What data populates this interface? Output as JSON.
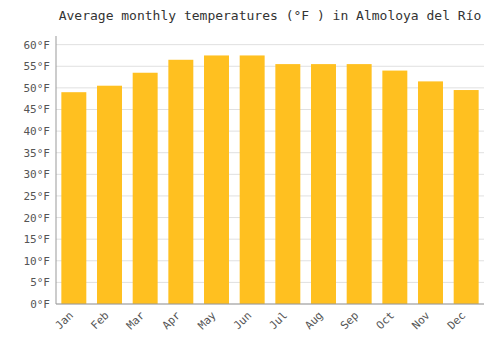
{
  "chart_data": {
    "type": "bar",
    "title": "Average monthly temperatures (°F ) in Almoloya del Río",
    "categories": [
      "Jan",
      "Feb",
      "Mar",
      "Apr",
      "May",
      "Jun",
      "Jul",
      "Aug",
      "Sep",
      "Oct",
      "Nov",
      "Dec"
    ],
    "values": [
      49,
      50.5,
      53.5,
      56.5,
      57.5,
      57.5,
      55.5,
      55.5,
      55.5,
      54,
      51.5,
      49.5
    ],
    "color": "#FFC020",
    "ylim": [
      0,
      62
    ],
    "yticks": [
      {
        "value": 0,
        "label": "0°F"
      },
      {
        "value": 5,
        "label": "5°F"
      },
      {
        "value": 10,
        "label": "10°F"
      },
      {
        "value": 15,
        "label": "15°F"
      },
      {
        "value": 20,
        "label": "20°F"
      },
      {
        "value": 25,
        "label": "25°F"
      },
      {
        "value": 30,
        "label": "30°F"
      },
      {
        "value": 35,
        "label": "35°F"
      },
      {
        "value": 40,
        "label": "40°F"
      },
      {
        "value": 45,
        "label": "45°F"
      },
      {
        "value": 50,
        "label": "50°F"
      },
      {
        "value": 55,
        "label": "55°F"
      },
      {
        "value": 60,
        "label": "60°F"
      }
    ],
    "grid": true
  }
}
